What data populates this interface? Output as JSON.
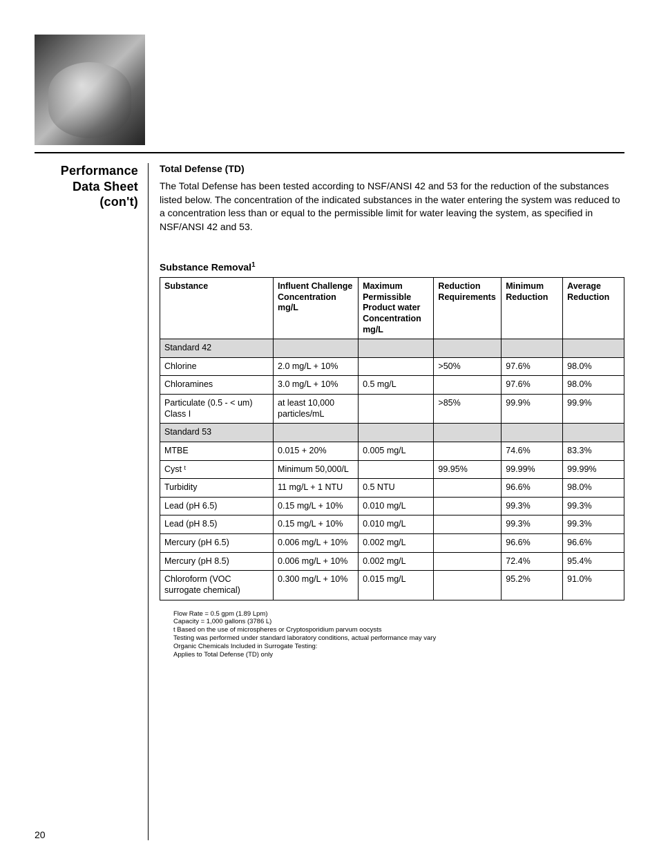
{
  "section_title_line1": "Performance",
  "section_title_line2": "Data Sheet",
  "section_title_line3": "(con't)",
  "subhead": "Total Defense (TD)",
  "body_text": "The Total Defense has been tested according to NSF/ANSI 42 and 53 for the reduction of the substances listed below.  The concentration of the indicated substances in the water entering the system was reduced to a concentration less than or equal to the permissible limit for water leaving the system, as specified in NSF/ANSI 42 and 53.",
  "table_title": "Substance Removal",
  "table_title_sup": "1",
  "columns": [
    "Substance",
    "Influent Challenge Concentration mg/L",
    "Maximum Permissible Product water Concentration mg/L",
    "Reduction Requirements",
    "Minimum Reduction",
    "Average Reduction"
  ],
  "rows": [
    {
      "section": true,
      "cells": [
        "Standard 42",
        "",
        "",
        "",
        "",
        ""
      ]
    },
    {
      "section": false,
      "cells": [
        "Chlorine",
        "2.0 mg/L + 10%",
        "",
        ">50%",
        "97.6%",
        "98.0%"
      ]
    },
    {
      "section": false,
      "cells": [
        "Chloramines",
        "3.0 mg/L + 10%",
        "0.5 mg/L",
        "",
        "97.6%",
        "98.0%"
      ]
    },
    {
      "section": false,
      "cells": [
        "Particulate (0.5 - < um) Class I",
        "at least 10,000 particles/mL",
        "",
        ">85%",
        "99.9%",
        "99.9%"
      ]
    },
    {
      "section": true,
      "cells": [
        "Standard 53",
        "",
        "",
        "",
        "",
        ""
      ]
    },
    {
      "section": false,
      "cells": [
        "MTBE",
        "0.015 + 20%",
        "0.005 mg/L",
        "",
        "74.6%",
        "83.3%"
      ]
    },
    {
      "section": false,
      "cells": [
        "Cyst ᵗ",
        "Minimum 50,000/L",
        "",
        "99.95%",
        "99.99%",
        "99.99%"
      ]
    },
    {
      "section": false,
      "cells": [
        "Turbidity",
        "11 mg/L + 1 NTU",
        "0.5 NTU",
        "",
        "96.6%",
        "98.0%"
      ]
    },
    {
      "section": false,
      "cells": [
        "Lead (pH 6.5)",
        "0.15 mg/L + 10%",
        "0.010 mg/L",
        "",
        "99.3%",
        "99.3%"
      ]
    },
    {
      "section": false,
      "cells": [
        "Lead (pH 8.5)",
        "0.15 mg/L + 10%",
        "0.010 mg/L",
        "",
        "99.3%",
        "99.3%"
      ]
    },
    {
      "section": false,
      "cells": [
        "Mercury (pH 6.5)",
        "0.006 mg/L + 10%",
        "0.002 mg/L",
        "",
        "96.6%",
        "96.6%"
      ]
    },
    {
      "section": false,
      "cells": [
        "Mercury (pH 8.5)",
        "0.006 mg/L + 10%",
        "0.002 mg/L",
        "",
        "72.4%",
        "95.4%"
      ]
    },
    {
      "section": false,
      "cells": [
        "Chloroform (VOC surrogate chemical)",
        "0.300 mg/L + 10%",
        "0.015 mg/L",
        "",
        "95.2%",
        "91.0%"
      ]
    }
  ],
  "footnotes": [
    "Flow Rate = 0.5 gpm (1.89 Lpm)",
    "Capacity = 1,000 gallons (3786 L)",
    "t Based on the use of microspheres or Cryptosporidium parvum oocysts",
    "Testing was performed under standard laboratory conditions, actual performance may vary",
    "Organic Chemicals Included in Surrogate Testing:",
    "Applies to Total Defense (TD) only"
  ],
  "page_number": "20",
  "colors": {
    "section_row_bg": "#d9d9d9",
    "border": "#000000",
    "text": "#000000"
  }
}
